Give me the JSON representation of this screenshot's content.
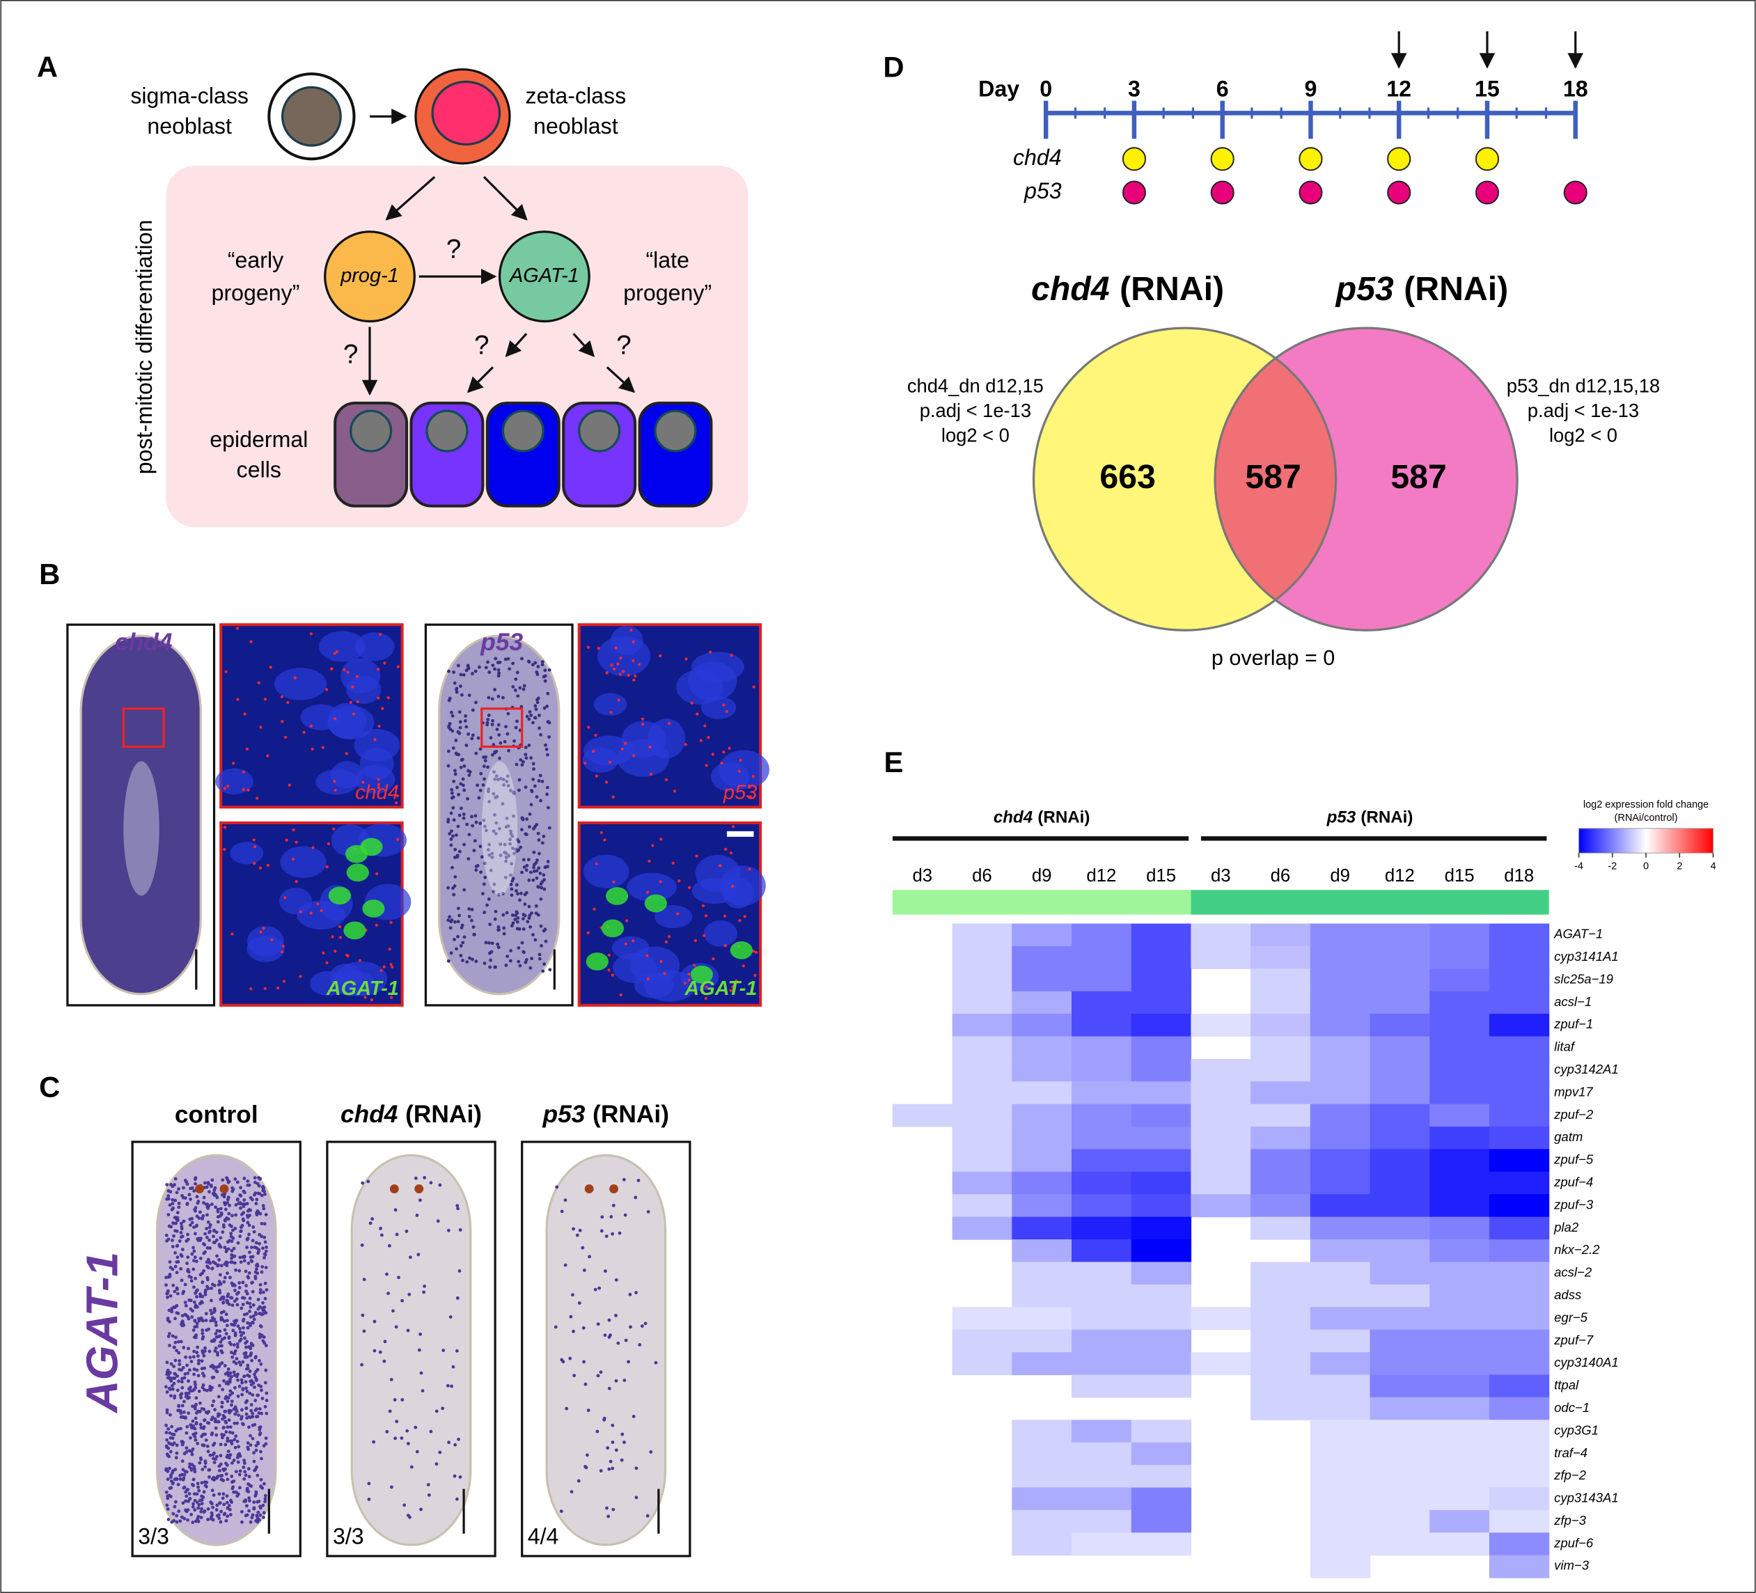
{
  "panel_a": {
    "label": "A",
    "sigma": [
      "sigma-class",
      "neoblast"
    ],
    "zeta": [
      "zeta-class",
      "neoblast"
    ],
    "box_label": "post-mitotic differentiation",
    "early": [
      "“early",
      "progeny”"
    ],
    "late": [
      "“late",
      "progeny”"
    ],
    "prog": "prog-1",
    "agat": "AGAT-1",
    "questions": [
      "?",
      "?",
      "?",
      "?"
    ],
    "epidermal": [
      "epidermal",
      "cells"
    ]
  },
  "panel_b": {
    "label": "B",
    "panels": [
      {
        "gene": "chd4",
        "probe": "chd4",
        "costain": "AGAT-1"
      },
      {
        "gene": "p53",
        "probe": "p53",
        "costain": "AGAT-1"
      }
    ]
  },
  "panel_c": {
    "label": "C",
    "stain": "AGAT-1",
    "conditions": [
      {
        "name": "control",
        "count": "3/3"
      },
      {
        "name": "chd4",
        "suffix": "(RNAi)",
        "count": "3/3"
      },
      {
        "name": "p53",
        "suffix": "(RNAi)",
        "count": "4/4"
      }
    ]
  },
  "panel_d": {
    "label": "D",
    "timeline": {
      "xlabel": "Day",
      "xlim": [
        0,
        18
      ],
      "xticks": [
        0,
        3,
        6,
        9,
        12,
        15,
        18
      ],
      "arrows": [
        12,
        15,
        18
      ],
      "series": [
        {
          "name": "chd4",
          "color": "#fff200",
          "days": [
            3,
            6,
            9,
            12,
            15
          ]
        },
        {
          "name": "p53",
          "color": "#e8007a",
          "days": [
            3,
            6,
            9,
            12,
            15,
            18
          ]
        }
      ]
    },
    "venn": {
      "sets": [
        {
          "gene": "chd4",
          "suffix": "(RNAi)",
          "color": "#fff67a",
          "criteria": [
            "chd4_dn d12,15",
            "p.adj < 1e-13",
            "log2 < 0"
          ]
        },
        {
          "gene": "p53",
          "suffix": "(RNAi)",
          "color": "#f27bc4",
          "criteria": [
            "p53_dn d12,15,18",
            "p.adj < 1e-13",
            "log2 < 0"
          ]
        }
      ],
      "overlap_color": "#f07075",
      "counts": [
        663,
        587,
        587
      ],
      "footnote": "p overlap = 0"
    }
  },
  "panel_e": {
    "label": "E",
    "groups": [
      {
        "gene": "chd4",
        "suffix": "(RNAi)",
        "color": "#9ef59a",
        "columns": [
          "d3",
          "d6",
          "d9",
          "d12",
          "d15"
        ]
      },
      {
        "gene": "p53",
        "suffix": "(RNAi)",
        "color": "#42cf84",
        "columns": [
          "d3",
          "d6",
          "d9",
          "d12",
          "d15",
          "d18"
        ]
      }
    ],
    "colorbar": {
      "title": [
        "log2 expression fold change",
        "(RNAi/control)"
      ],
      "clim": [
        -4,
        4
      ],
      "ticks": [
        -4,
        -2,
        0,
        2,
        4
      ],
      "colors": [
        "#0000ff",
        "#ffffff",
        "#ff0000"
      ]
    },
    "genes": [
      "AGAT−1",
      "cyp3141A1",
      "slc25a−19",
      "acsl−1",
      "zpuf−1",
      "litaf",
      "cyp3142A1",
      "mpv17",
      "zpuf−2",
      "gatm",
      "zpuf−5",
      "zpuf−4",
      "zpuf−3",
      "pla2",
      "nkx−2.2",
      "acsl−2",
      "adss",
      "egr−5",
      "zpuf−7",
      "cyp3140A1",
      "ttpal",
      "odc−1",
      "cyp3G1",
      "traf−4",
      "zfp−2",
      "cyp3143A1",
      "zfp−3",
      "zpuf−6",
      "vim−3"
    ],
    "values": [
      [
        null,
        -0.7,
        -1.5,
        -2,
        -2.8,
        -0.7,
        -1.2,
        -1.8,
        -1.8,
        -2,
        -2.5
      ],
      [
        null,
        -0.7,
        -2,
        -2,
        -2.8,
        -0.7,
        -1,
        -1.8,
        -1.8,
        -2,
        -2.5
      ],
      [
        null,
        -0.7,
        -2,
        -2,
        -2.8,
        null,
        -0.7,
        -1.8,
        -1.8,
        -2.2,
        -2.5
      ],
      [
        null,
        -0.7,
        -1.3,
        -2.8,
        -2.8,
        null,
        -0.7,
        -1.8,
        -1.8,
        -2.5,
        -2.5
      ],
      [
        null,
        -1.3,
        -1.8,
        -2.8,
        -3.2,
        -0.5,
        -1,
        -1.8,
        -2.3,
        -2.5,
        -3.5
      ],
      [
        null,
        -0.7,
        -1.3,
        -1.5,
        -2,
        null,
        -0.7,
        -1.3,
        -1.8,
        -2.5,
        -2.5
      ],
      [
        null,
        -0.7,
        -1.3,
        -1.5,
        -2,
        -0.7,
        -0.7,
        -1.3,
        -1.8,
        -2.5,
        -2.5
      ],
      [
        null,
        -0.7,
        -0.7,
        -1.3,
        -1.3,
        -0.7,
        -1.3,
        -1.3,
        -1.8,
        -2.5,
        -2.5
      ],
      [
        -0.7,
        -0.7,
        -1.3,
        -1.8,
        -2,
        -0.7,
        -0.7,
        -2,
        -2.5,
        -2,
        -2.5
      ],
      [
        null,
        -0.7,
        -1.3,
        -1.8,
        -1.8,
        -0.7,
        -1.3,
        -2,
        -2.5,
        -3,
        -2.8
      ],
      [
        null,
        -0.7,
        -1.3,
        -2.5,
        -2.5,
        -0.7,
        -2,
        -2.5,
        -3,
        -3.5,
        -4
      ],
      [
        null,
        -1.3,
        -2,
        -2.8,
        -3,
        -0.7,
        -2,
        -2.5,
        -3,
        -3.5,
        -3.5
      ],
      [
        null,
        -0.7,
        -1.8,
        -2.5,
        -2.8,
        -1.3,
        -1.8,
        -3,
        -3,
        -3.5,
        -4
      ],
      [
        null,
        -1.3,
        -3,
        -3.5,
        -3.8,
        null,
        -0.7,
        -1.8,
        -1.8,
        -2,
        -2.8
      ],
      [
        null,
        null,
        -1.3,
        -3,
        -4,
        null,
        null,
        -1.3,
        -1.3,
        -1.8,
        -2
      ],
      [
        null,
        null,
        -0.7,
        -0.7,
        -1.3,
        null,
        -0.7,
        -0.7,
        -1.3,
        -1.3,
        -1.3
      ],
      [
        null,
        null,
        -0.7,
        -0.7,
        -0.7,
        null,
        -0.7,
        -0.7,
        -0.7,
        -1.3,
        -1.3
      ],
      [
        null,
        -0.5,
        -0.5,
        -0.7,
        -0.7,
        -0.5,
        -0.7,
        -1.3,
        -1.3,
        -1.3,
        -1.3
      ],
      [
        null,
        -0.7,
        -0.7,
        -1.3,
        -1.3,
        null,
        -0.7,
        -0.7,
        -1.8,
        -1.8,
        -1.8
      ],
      [
        null,
        -0.7,
        -1.3,
        -1.3,
        -1.3,
        -0.5,
        -0.7,
        -1.3,
        -1.8,
        -1.8,
        -1.8
      ],
      [
        null,
        null,
        null,
        -0.7,
        -0.7,
        null,
        -0.7,
        -0.7,
        -2,
        -2,
        -2.5
      ],
      [
        null,
        null,
        null,
        null,
        null,
        null,
        -0.7,
        -0.7,
        -1.3,
        -1.3,
        -1.8
      ],
      [
        null,
        null,
        -0.7,
        -1.3,
        -0.7,
        null,
        null,
        -0.5,
        -0.5,
        -0.5,
        -0.5
      ],
      [
        null,
        null,
        -0.7,
        -0.7,
        -1.3,
        null,
        null,
        -0.5,
        -0.5,
        -0.5,
        -0.5
      ],
      [
        null,
        null,
        -0.7,
        -0.7,
        -0.7,
        null,
        null,
        -0.5,
        -0.5,
        -0.5,
        -0.5
      ],
      [
        null,
        null,
        -1.3,
        -1.3,
        -2,
        null,
        null,
        -0.5,
        -0.5,
        -0.5,
        -0.7
      ],
      [
        null,
        null,
        -0.7,
        -0.7,
        -2,
        null,
        null,
        -0.5,
        -0.5,
        -1.3,
        -0.5
      ],
      [
        null,
        null,
        -0.7,
        -0.5,
        -0.5,
        null,
        null,
        -0.5,
        -0.5,
        -0.5,
        -1.8
      ],
      [
        null,
        null,
        null,
        null,
        null,
        null,
        null,
        -0.5,
        null,
        null,
        -1.3
      ]
    ]
  }
}
